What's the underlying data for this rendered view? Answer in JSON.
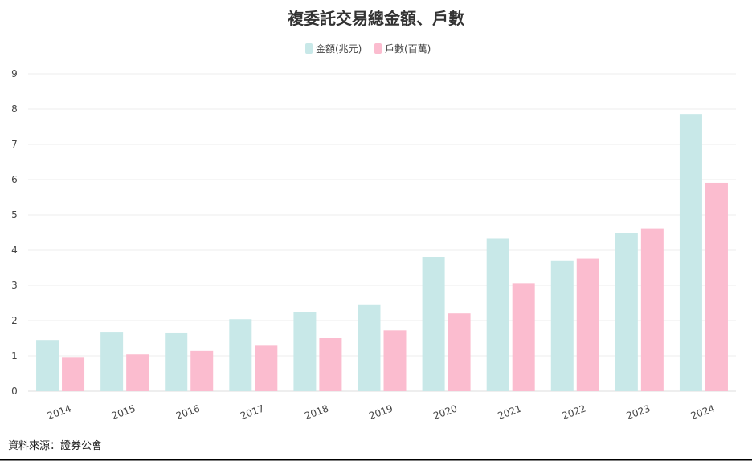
{
  "colors": {
    "amount": "#c8e8e8",
    "households": "#fbbccf",
    "text": "#333333",
    "grid": "#ececec",
    "frame": "#000000"
  },
  "source_note": "資料來源：證券公會",
  "chart_data": {
    "type": "bar",
    "title": "複委託交易總金額、戶數",
    "legend_position": "top-center",
    "grid": true,
    "categories": [
      "2014",
      "2015",
      "2016",
      "2017",
      "2018",
      "2019",
      "2020",
      "2021",
      "2022",
      "2023",
      "2024"
    ],
    "series": [
      {
        "name": "金額(兆元)",
        "color": "#c8e8e8",
        "values": [
          1.45,
          1.68,
          1.66,
          2.04,
          2.25,
          2.46,
          3.8,
          4.33,
          3.71,
          4.49,
          7.86
        ]
      },
      {
        "name": "戶數(百萬)",
        "color": "#fbbccf",
        "values": [
          0.97,
          1.04,
          1.14,
          1.31,
          1.5,
          1.72,
          2.2,
          3.06,
          3.76,
          4.6,
          5.91
        ]
      }
    ],
    "ylim": [
      0,
      9
    ],
    "yticks": [
      "0",
      "1",
      "2",
      "3",
      "4",
      "5",
      "6",
      "7",
      "8",
      "9"
    ],
    "xlabel": "",
    "ylabel": ""
  }
}
